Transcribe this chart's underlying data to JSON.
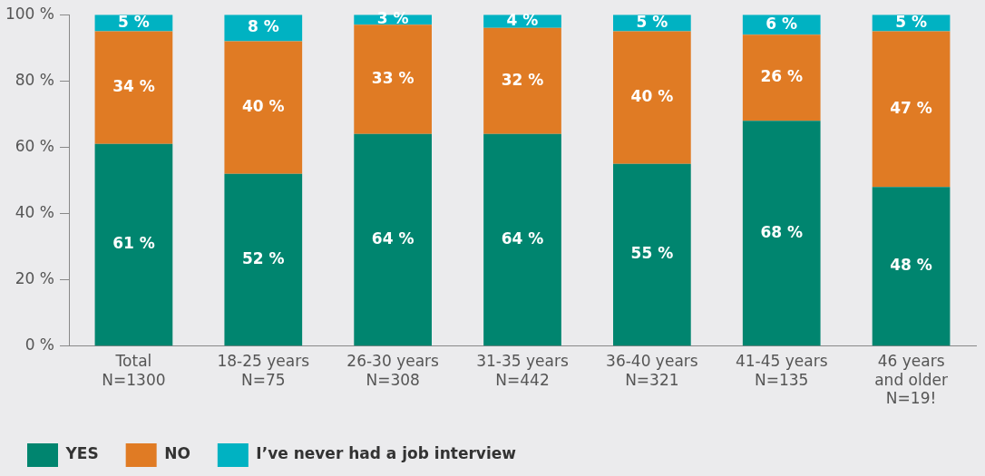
{
  "chart_data": {
    "type": "bar",
    "stacked": true,
    "legend": "bottom",
    "grid": false,
    "categories": [
      "Total\nN=1300",
      "18-25 years\nN=75",
      "26-30 years\nN=308",
      "31-35 years\nN=442",
      "36-40 years\nN=321",
      "41-45 years\nN=135",
      "46 years\nand older\nN=19!"
    ],
    "series": [
      {
        "name": "YES",
        "color": "#00856f",
        "values": [
          61,
          52,
          64,
          64,
          55,
          68,
          48
        ],
        "value_labels": [
          "61 %",
          "52 %",
          "64 %",
          "64 %",
          "55 %",
          "68 %",
          "48 %"
        ]
      },
      {
        "name": "NO",
        "color": "#e07b24",
        "values": [
          34,
          40,
          33,
          32,
          40,
          26,
          47
        ],
        "value_labels": [
          "34 %",
          "40 %",
          "33 %",
          "32 %",
          "40 %",
          "26 %",
          "47 %"
        ]
      },
      {
        "name": "I’ve never had a job interview",
        "color": "#00b2c2",
        "values": [
          5,
          8,
          3,
          4,
          5,
          6,
          5
        ],
        "value_labels": [
          "5 %",
          "8 %",
          "3 %",
          "4 %",
          "5 %",
          "6 %",
          "5 %"
        ]
      }
    ],
    "ylim": [
      0,
      100
    ],
    "yticks": [
      {
        "value": 0,
        "label": "0 %"
      },
      {
        "value": 20,
        "label": "20 %"
      },
      {
        "value": 40,
        "label": "40 %"
      },
      {
        "value": 60,
        "label": "60 %"
      },
      {
        "value": 80,
        "label": "80 %"
      },
      {
        "value": 100,
        "label": "100 %"
      }
    ]
  }
}
